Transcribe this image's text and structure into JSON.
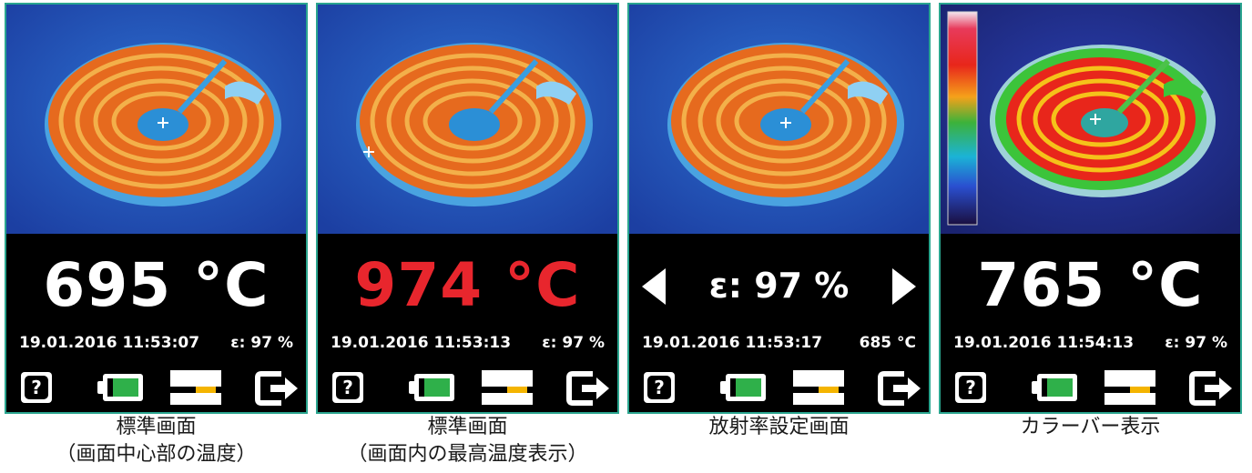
{
  "colors": {
    "frame": "#2aa58f",
    "highlight_temp": "#e8262d",
    "battery": "#2fb04a",
    "card_fill": "#f4b400"
  },
  "icons": [
    "help-icon",
    "battery-icon",
    "memory-card-icon",
    "exit-icon"
  ],
  "panels": [
    {
      "temperature": "695 °C",
      "timestamp": "19.01.2016 11:53:07",
      "secondary": "ε: 97 %",
      "caption_line1": "標準画面",
      "caption_line2": "（画面中心部の温度）"
    },
    {
      "temperature": "974 °C",
      "timestamp": "19.01.2016 11:53:13",
      "secondary": "ε: 97 %",
      "caption_line1": "標準画面",
      "caption_line2": "（画面内の最高温度表示）"
    },
    {
      "emissivity_setting": "ε: 97 %",
      "timestamp": "19.01.2016 11:53:17",
      "secondary": "685 °C",
      "caption_line1": "放射率設定画面"
    },
    {
      "temperature": "765 °C",
      "timestamp": "19.01.2016 11:54:13",
      "secondary": "ε: 97 %",
      "caption_line1": "カラーバー表示"
    }
  ],
  "help_glyph": "?"
}
